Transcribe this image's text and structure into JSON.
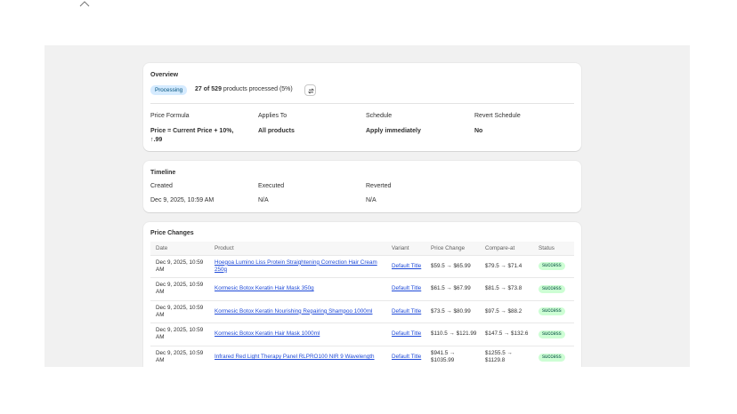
{
  "overview": {
    "title": "Overview",
    "status_badge": "Processing",
    "progress_bold": "27 of 529",
    "progress_rest": " products processed (5%)",
    "fields": [
      {
        "label": "Price Formula",
        "value": "Price = Current Price + 10%, ↑.99"
      },
      {
        "label": "Applies To",
        "value": "All products"
      },
      {
        "label": "Schedule",
        "value": "Apply immediately"
      },
      {
        "label": "Revert Schedule",
        "value": "No"
      }
    ]
  },
  "timeline": {
    "title": "Timeline",
    "fields": [
      {
        "label": "Created",
        "value": "Dec 9, 2025, 10:59 AM"
      },
      {
        "label": "Executed",
        "value": "N/A"
      },
      {
        "label": "Reverted",
        "value": "N/A"
      }
    ]
  },
  "price_changes": {
    "title": "Price Changes",
    "columns": [
      "Date",
      "Product",
      "Variant",
      "Price Change",
      "Compare-at",
      "Status"
    ],
    "rows": [
      {
        "date": "Dec 9, 2025, 10:59 AM",
        "product": "Hoegoa Lumino Liss Protein Straightening Correction Hair Cream 250g",
        "variant": "Default Title",
        "price": "$59.5 → $65.99",
        "compare": "$79.5 → $71.4",
        "status": "success"
      },
      {
        "date": "Dec 9, 2025, 10:59 AM",
        "product": "Kormesic Botox Keratin Hair Mask 350g",
        "variant": "Default Title",
        "price": "$61.5 → $67.99",
        "compare": "$81.5 → $73.8",
        "status": "success"
      },
      {
        "date": "Dec 9, 2025, 10:59 AM",
        "product": "Kormesic Botox Keratin Nourishing Repairing Shampoo 1000ml",
        "variant": "Default Title",
        "price": "$73.5 → $80.99",
        "compare": "$97.5 → $88.2",
        "status": "success"
      },
      {
        "date": "Dec 9, 2025, 10:59 AM",
        "product": "Kormesic Botox Keratin Hair Mask 1000ml",
        "variant": "Default Title",
        "price": "$110.5 → $121.99",
        "compare": "$147.5 → $132.6",
        "status": "success"
      },
      {
        "date": "Dec 9, 2025, 10:59 AM",
        "product": "Infrared Red Light Therapy Panel RLPRO100 NIR 9 Wavelength",
        "variant": "Default Title",
        "price": "$941.5 → $1035.99",
        "compare": "$1255.5 → $1129.8",
        "status": "success"
      }
    ]
  },
  "colors": {
    "stage": "#f1f1f1",
    "card": "#ffffff",
    "badge_processing": "#d5ebff",
    "badge_success": "#cdfed4",
    "link": "#1d49d8"
  },
  "icons": {
    "top": "chevron-up-icon",
    "refresh": "refresh-icon"
  }
}
